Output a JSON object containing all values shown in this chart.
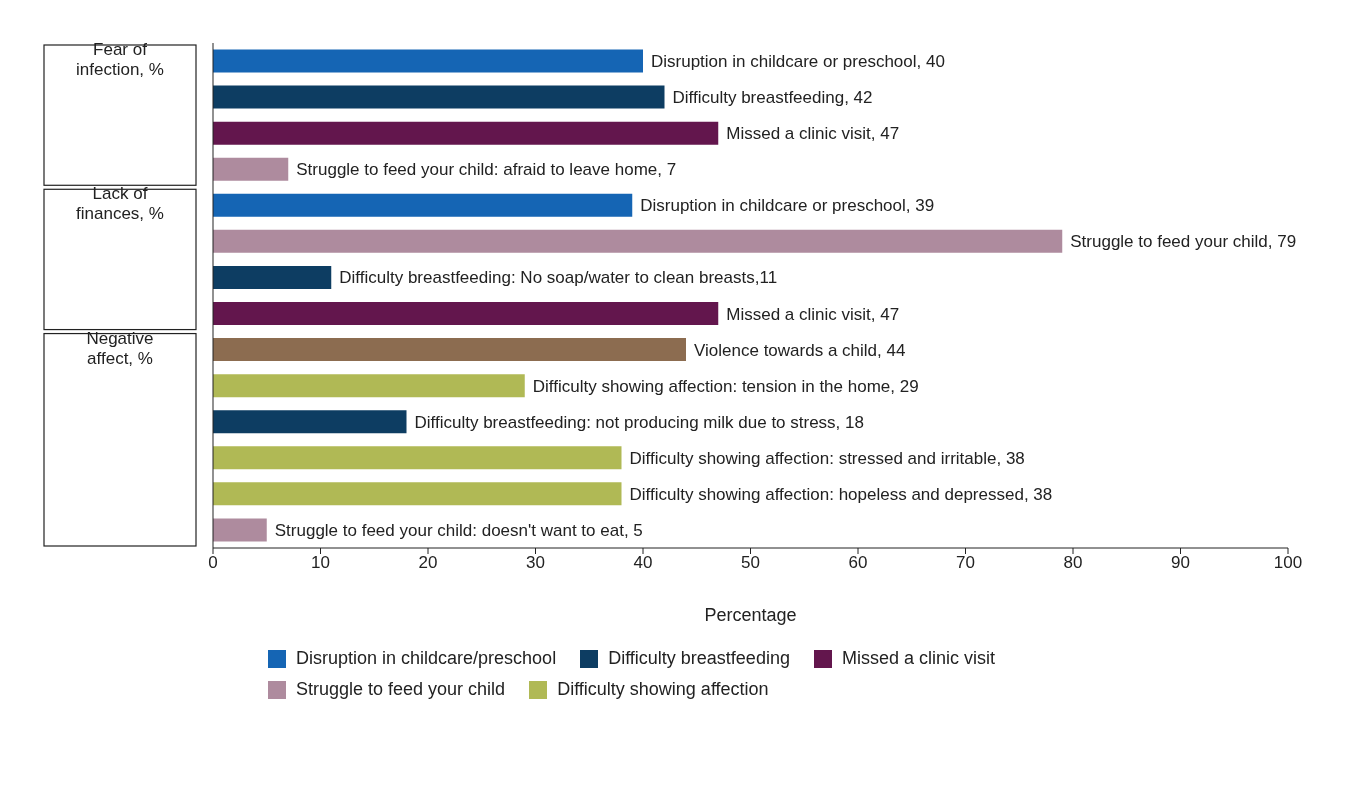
{
  "chart_data": {
    "type": "bar",
    "orientation": "horizontal",
    "stacked": true,
    "categories": [
      "Fear of infection, %",
      null,
      null,
      null,
      "Lack of finances, %",
      null,
      null,
      null,
      "Negative affect, %",
      null,
      null,
      null,
      null,
      null
    ],
    "series": [
      {
        "name": "Disruption in childcare/preschool",
        "color": "#1565b4",
        "values": [
          40,
          null,
          null,
          null,
          39,
          null,
          null,
          null,
          null,
          null,
          null,
          null,
          null,
          null
        ],
        "value_labels": [
          "Disruption in childcare or preschool, 40",
          null,
          null,
          null,
          "Disruption in childcare or preschool, 39",
          null,
          null,
          null,
          null,
          null,
          null,
          null,
          null,
          null
        ]
      },
      {
        "name": "Difficulty breastfeeding",
        "color": "#0d3d62",
        "values": [
          null,
          42,
          null,
          null,
          null,
          null,
          11,
          null,
          null,
          null,
          18,
          null,
          null,
          null
        ],
        "value_labels": [
          null,
          "Difficulty breastfeeding, 42",
          null,
          null,
          null,
          null,
          "Difficulty breastfeeding: No soap/water to clean breasts,11",
          null,
          null,
          null,
          "Difficulty breastfeeding: not producing milk due to stress, 18",
          null,
          null,
          null
        ]
      },
      {
        "name": "Missed a clinic visit",
        "color": "#63164d",
        "values": [
          null,
          null,
          47,
          null,
          null,
          null,
          null,
          47,
          null,
          null,
          null,
          null,
          null,
          null
        ],
        "value_labels": [
          null,
          null,
          "Missed a clinic visit, 47",
          null,
          null,
          null,
          null,
          "Missed a clinic visit, 47",
          null,
          null,
          null,
          null,
          null,
          null
        ]
      },
      {
        "name": "Struggle to feed your child",
        "color": "#ae8b9e",
        "values": [
          null,
          null,
          null,
          7,
          null,
          79,
          null,
          null,
          null,
          null,
          null,
          null,
          null,
          5
        ],
        "value_labels": [
          null,
          null,
          null,
          "Struggle to feed your child: afraid to leave home, 7",
          null,
          "Struggle to feed your child, 79",
          null,
          null,
          null,
          null,
          null,
          null,
          null,
          "Struggle to feed your child: doesn't want to eat, 5"
        ]
      },
      {
        "name": "Difficulty showing affection",
        "color": "#b0b955",
        "values": [
          null,
          null,
          null,
          null,
          null,
          null,
          null,
          null,
          null,
          29,
          null,
          38,
          38,
          null
        ],
        "value_labels": [
          null,
          null,
          null,
          null,
          null,
          null,
          null,
          null,
          null,
          "Difficulty showing affection: tension in the home, 29",
          null,
          "Difficulty showing affection: stressed and irritable, 38",
          "Difficulty showing affection: hopeless and depressed, 38",
          null
        ]
      },
      {
        "color": "#8c6c50",
        "values": [
          null,
          null,
          null,
          null,
          null,
          null,
          null,
          null,
          44,
          null,
          null,
          null,
          null,
          null
        ],
        "value_labels": [
          null,
          null,
          null,
          null,
          null,
          null,
          null,
          null,
          "Violence towards a child, 44",
          null,
          null,
          null,
          null,
          null
        ]
      }
    ],
    "xlim": [
      0,
      100
    ],
    "xticks": [
      0,
      10,
      20,
      30,
      40,
      50,
      60,
      70,
      80,
      90,
      100
    ],
    "xlabel": "Percentage",
    "legend": "bottom"
  }
}
